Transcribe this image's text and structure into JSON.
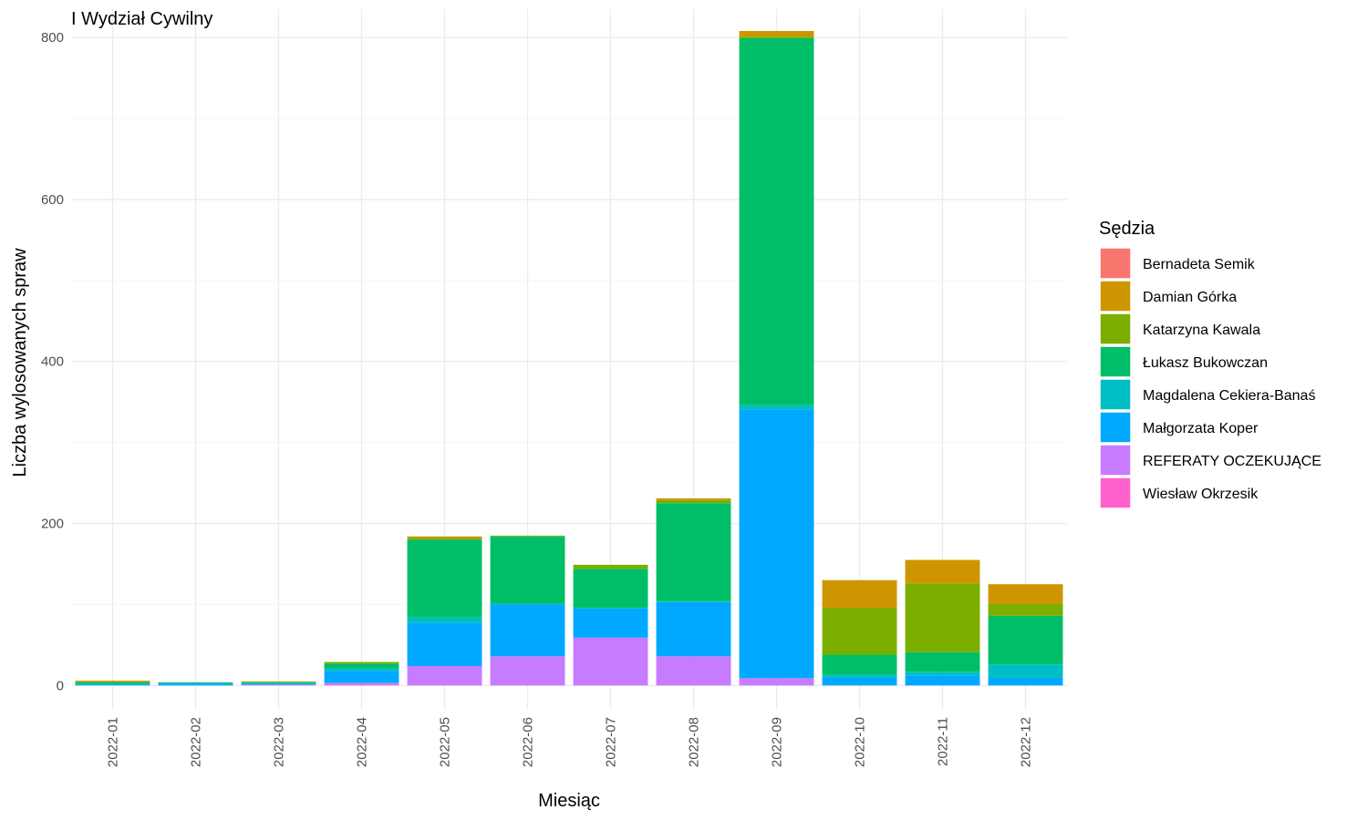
{
  "chart_data": {
    "type": "bar",
    "stacked": true,
    "title": "I Wydział Cywilny",
    "xlabel": "Miesiąc",
    "ylabel": "Liczba wylosowanych spraw",
    "ylim": [
      -30,
      835
    ],
    "yticks": [
      0,
      200,
      400,
      600,
      800
    ],
    "grid": true,
    "legend": {
      "title": "Sędzia",
      "position": "right"
    },
    "categories": [
      "2022-01",
      "2022-02",
      "2022-03",
      "2022-04",
      "2022-05",
      "2022-06",
      "2022-07",
      "2022-08",
      "2022-09",
      "2022-10",
      "2022-11",
      "2022-12"
    ],
    "series": [
      {
        "name": "Bernadeta Semik",
        "color": "#F8766D",
        "values": [
          0,
          0,
          0,
          0,
          0,
          0,
          0,
          0,
          0,
          0,
          0,
          0
        ]
      },
      {
        "name": "Damian Górka",
        "color": "#CD9600",
        "values": [
          1,
          0,
          0,
          0,
          2,
          0,
          0,
          2,
          7,
          34,
          29,
          24
        ]
      },
      {
        "name": "Katarzyna Kawala",
        "color": "#7CAE00",
        "values": [
          1,
          0,
          1,
          2,
          2,
          1,
          5,
          4,
          2,
          58,
          85,
          15
        ]
      },
      {
        "name": "Łukasz Bukowczan",
        "color": "#00BE67",
        "values": [
          2,
          1,
          1,
          6,
          96,
          83,
          48,
          121,
          453,
          25,
          24,
          60
        ]
      },
      {
        "name": "Magdalena Cekiera-Banaś",
        "color": "#00BFC4",
        "values": [
          1,
          1,
          1,
          3,
          7,
          1,
          1,
          1,
          5,
          3,
          5,
          16
        ]
      },
      {
        "name": "Małgorzata Koper",
        "color": "#00A9FF",
        "values": [
          1,
          2,
          1,
          15,
          53,
          64,
          36,
          67,
          332,
          10,
          12,
          10
        ]
      },
      {
        "name": "REFERATY OCZEKUJĄCE",
        "color": "#C77CFF",
        "values": [
          0,
          0,
          1,
          2,
          24,
          36,
          59,
          36,
          9,
          0,
          0,
          0
        ]
      },
      {
        "name": "Wiesław Okrzesik",
        "color": "#FF61CC",
        "values": [
          0,
          0,
          0,
          1,
          0,
          0,
          0,
          0,
          0,
          0,
          0,
          0
        ]
      }
    ]
  }
}
